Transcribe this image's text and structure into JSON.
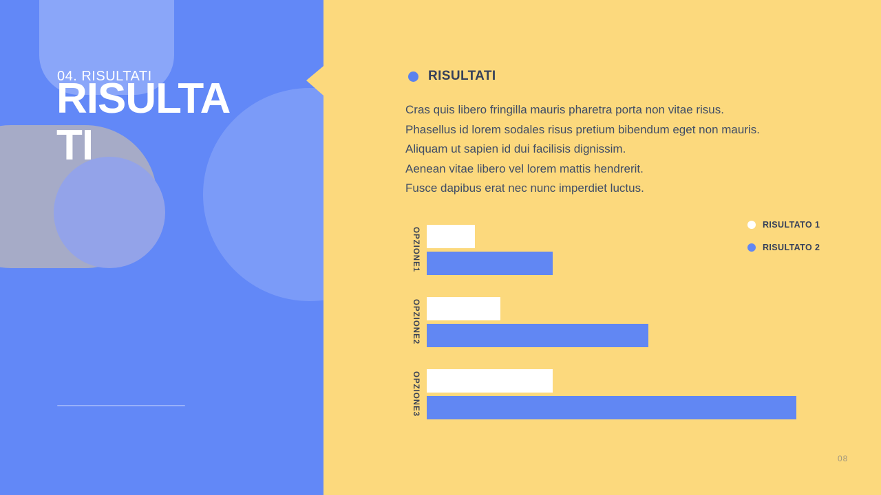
{
  "slide": {
    "left_panel": {
      "kicker": "04. RISULTATI",
      "title_lines": [
        "RISULTA",
        "TI"
      ]
    },
    "content": {
      "heading": "RISULTATI",
      "body_lines": [
        "Cras quis libero fringilla mauris pharetra porta non vitae risus.",
        "Phasellus id lorem sodales risus pretium bibendum eget non mauris.",
        "Aliquam ut sapien id dui facilisis dignissim.",
        "Aenean vitae libero vel lorem mattis hendrerit.",
        "Fusce dapibus erat nec nunc imperdiet luctus."
      ],
      "page_number": "08"
    },
    "colors": {
      "panel_blue": "#6288F7",
      "background_yellow": "#FCD97D",
      "bar_blue": "#6187F3",
      "bar_white": "#FFFFFF",
      "heading_navy": "#36405A",
      "body_text": "#404D66",
      "bullet_blue": "#5B82EE",
      "page_number_color": "#A1977F"
    }
  },
  "chart_data": {
    "type": "bar",
    "orientation": "horizontal",
    "title": "",
    "categories": [
      "OPZIONE1",
      "OPZIONE2",
      "OPZIONE3"
    ],
    "series": [
      {
        "name": "RISULTATO 1",
        "color": "#FFFFFF",
        "values": [
          13,
          20,
          34
        ]
      },
      {
        "name": "RISULTATO 2",
        "color": "#6187F3",
        "values": [
          34,
          60,
          100
        ]
      }
    ],
    "value_unit": "percent-of-max-bar",
    "xlim": [
      0,
      100
    ],
    "grid": false,
    "axis_ticks_visible": false,
    "legend_position": "top-right"
  }
}
